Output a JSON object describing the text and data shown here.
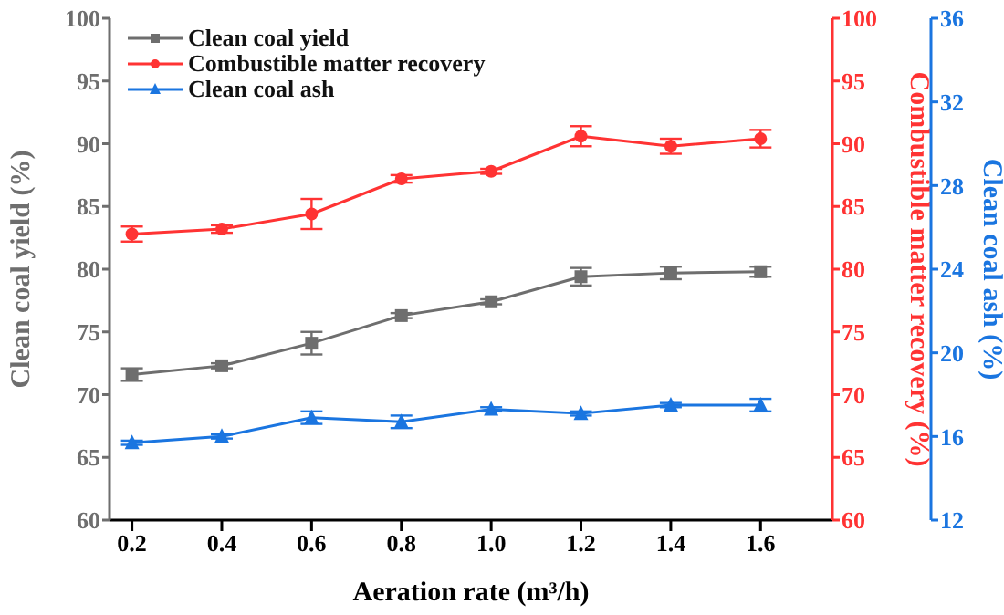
{
  "chart_data": {
    "type": "line",
    "xlabel": "Aeration rate (m³/h)",
    "ylabel": "Clean coal yield (%)",
    "y2label": "Combustible matter recovery (%)",
    "y3label": "Clean coal ash (%)",
    "x": [
      0.2,
      0.4,
      0.6,
      0.8,
      1.0,
      1.2,
      1.4,
      1.6
    ],
    "xlim": [
      0.15,
      1.76
    ],
    "xticks": [
      {
        "value": 0.2,
        "label": "0.2"
      },
      {
        "value": 0.4,
        "label": "0.4"
      },
      {
        "value": 0.6,
        "label": "0.6"
      },
      {
        "value": 0.8,
        "label": "0.8"
      },
      {
        "value": 1.0,
        "label": "1.0"
      },
      {
        "value": 1.2,
        "label": "1.2"
      },
      {
        "value": 1.4,
        "label": "1.4"
      },
      {
        "value": 1.6,
        "label": "1.6"
      }
    ],
    "ylim": [
      60,
      100
    ],
    "yticks": [
      60,
      65,
      70,
      75,
      80,
      85,
      90,
      95,
      100
    ],
    "y2lim": [
      60,
      100
    ],
    "y2ticks": [
      60,
      65,
      70,
      75,
      80,
      85,
      90,
      95,
      100
    ],
    "y3lim": [
      12,
      36
    ],
    "y3ticks": [
      12,
      16,
      20,
      24,
      28,
      32,
      36
    ],
    "series": [
      {
        "name": "Clean coal yield",
        "color": "#6e6e6e",
        "marker": "square",
        "values": [
          71.6,
          72.3,
          74.1,
          76.3,
          77.4,
          79.4,
          79.7,
          79.8
        ],
        "errors": [
          0.5,
          0.2,
          0.9,
          0.2,
          0.2,
          0.7,
          0.5,
          0.4
        ]
      },
      {
        "name": "Combustible matter recovery",
        "color": "#ff3333",
        "marker": "circle",
        "axis": "y2",
        "values": [
          82.8,
          83.2,
          84.4,
          87.2,
          87.8,
          90.6,
          89.8,
          90.4
        ],
        "errors": [
          0.6,
          0.3,
          1.2,
          0.3,
          0.2,
          0.8,
          0.6,
          0.7
        ]
      },
      {
        "name": "Clean coal ash",
        "color": "#1a75e0",
        "marker": "triangle",
        "axis": "y3",
        "values": [
          15.7,
          16.0,
          16.9,
          16.7,
          17.3,
          17.1,
          17.5,
          17.5
        ],
        "errors": [
          0.1,
          0.1,
          0.3,
          0.3,
          0.1,
          0.1,
          0.1,
          0.3
        ]
      }
    ],
    "legend": "top left",
    "grid": false
  }
}
